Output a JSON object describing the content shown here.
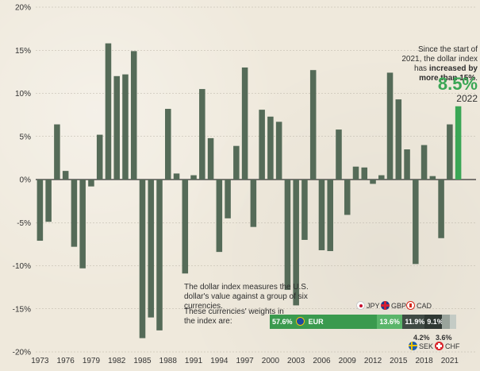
{
  "chart_data": {
    "type": "bar",
    "title": "",
    "xlabel": "",
    "ylabel": "",
    "ylim": [
      -20,
      20
    ],
    "yticks": [
      "20%",
      "15%",
      "10%",
      "5%",
      "0%",
      "-5%",
      "-10%",
      "-15%",
      "-20%"
    ],
    "xtick_labels": [
      "1973",
      "1976",
      "1979",
      "1982",
      "1985",
      "1988",
      "1991",
      "1994",
      "1997",
      "2000",
      "2003",
      "2006",
      "2009",
      "2012",
      "2015",
      "2018",
      "2021"
    ],
    "x": [
      1973,
      1974,
      1975,
      1976,
      1977,
      1978,
      1979,
      1980,
      1981,
      1982,
      1983,
      1984,
      1985,
      1986,
      1987,
      1988,
      1989,
      1990,
      1991,
      1992,
      1993,
      1994,
      1995,
      1996,
      1997,
      1998,
      1999,
      2000,
      2001,
      2002,
      2003,
      2004,
      2005,
      2006,
      2007,
      2008,
      2009,
      2010,
      2011,
      2012,
      2013,
      2014,
      2015,
      2016,
      2017,
      2018,
      2019,
      2020,
      2021,
      2022
    ],
    "values": [
      -7.1,
      -4.9,
      6.4,
      1.0,
      -7.8,
      -10.3,
      -0.8,
      5.2,
      15.8,
      12.0,
      12.2,
      14.9,
      -18.4,
      -16.0,
      -17.5,
      8.2,
      0.7,
      -10.9,
      0.5,
      10.5,
      4.8,
      -8.4,
      -4.5,
      3.9,
      13.0,
      -5.5,
      8.1,
      7.3,
      6.7,
      -12.8,
      -14.6,
      -7.0,
      12.7,
      -8.2,
      -8.3,
      5.8,
      -4.1,
      1.5,
      1.4,
      -0.5,
      0.5,
      12.4,
      9.3,
      3.5,
      -9.8,
      4.0,
      0.4,
      -6.8,
      6.4,
      8.5
    ],
    "highlight": {
      "x": 2022,
      "value_label": "8.5%",
      "year_label": "2022",
      "color": "#3aa655"
    },
    "bar_color": "#556b58",
    "grid": true,
    "annotation": {
      "lead": "Since the start of 2021, the dollar index has",
      "bold": "increased by more than 15%",
      "end": "."
    },
    "weights": [
      {
        "currency": "EUR",
        "weight": 57.6,
        "label": "57.6%",
        "color": "#3a9a4e"
      },
      {
        "currency": "JPY",
        "weight": 13.6,
        "label": "13.6%",
        "color": "#5ab56a"
      },
      {
        "currency": "GBP",
        "weight": 11.9,
        "label": "11.9%",
        "color": "#3f4a44"
      },
      {
        "currency": "CAD",
        "weight": 9.1,
        "label": "9.1%",
        "color": "#2f3833"
      },
      {
        "currency": "SEK",
        "weight": 4.2,
        "label": "4.2%",
        "color": "#9aa49c"
      },
      {
        "currency": "CHF",
        "weight": 3.6,
        "label": "3.6%",
        "color": "#c4cbc5"
      }
    ]
  },
  "text": {
    "index_description": "The dollar index measures the U.S. dollar's value against a group of six currencies.",
    "weights_intro": "These currencies' weights in the index are:"
  }
}
